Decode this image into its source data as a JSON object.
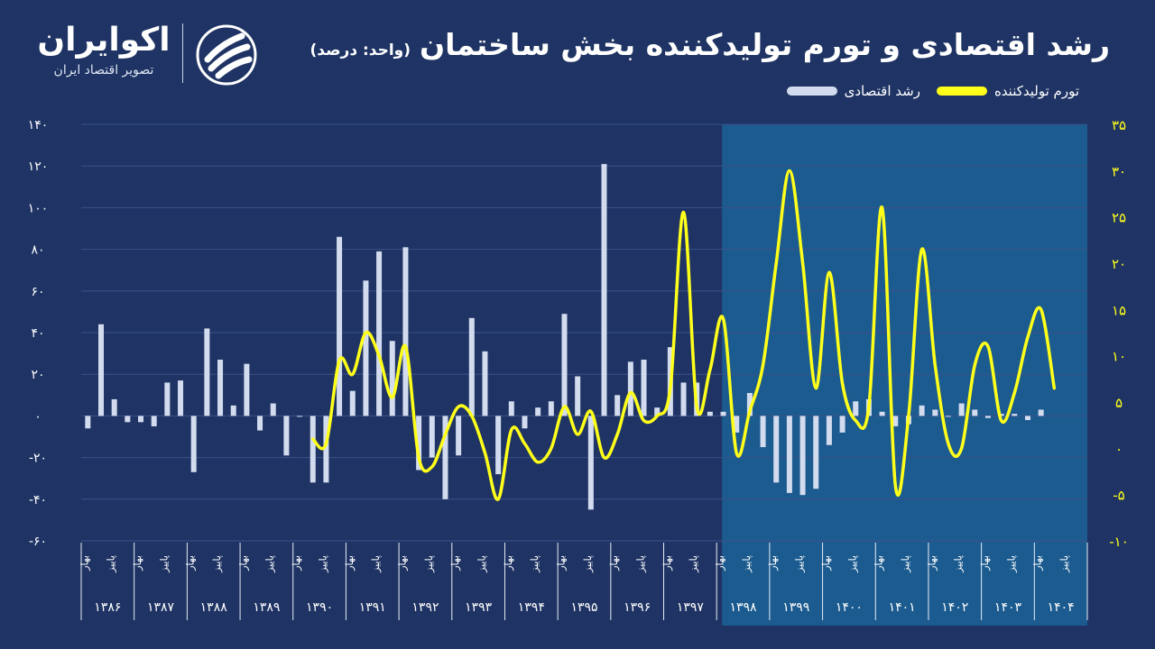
{
  "header": {
    "title": "رشد اقتصادی و تورم تولیدکننده بخش ساختمان",
    "unit": "(واحد: درصد)",
    "logo": {
      "name": "اکوایران",
      "tagline": "تصویر اقتصاد ایران"
    }
  },
  "colors": {
    "background": "#1f3464",
    "highlight": "#1c5b8f",
    "bar": "#d3dcef",
    "line": "#ffff1a"
  },
  "chart_data": {
    "type": "bar",
    "legend": [
      {
        "label": "تورم تولیدکننده",
        "color": "#ffff1a",
        "kind": "line"
      },
      {
        "label": "رشد اقتصادی",
        "color": "#d3dcef",
        "kind": "bar"
      }
    ],
    "y_left": {
      "ticks": [
        "۱۴۰",
        "۱۲۰",
        "۱۰۰",
        "۸۰",
        "۶۰",
        "۴۰",
        "۲۰",
        "۰",
        "-۲۰",
        "-۴۰",
        "-۶۰"
      ],
      "min": -60,
      "max": 140
    },
    "y_right": {
      "ticks": [
        "۳۵",
        "۳۰",
        "۲۵",
        "۲۰",
        "۱۵",
        "۱۰",
        "۵",
        "۰",
        "-۵",
        "-۱۰"
      ],
      "min": -10,
      "max": 35
    },
    "x": {
      "season_labels": [
        "بهار",
        "پاییز"
      ],
      "years": [
        "۱۳۸۶",
        "۱۳۸۷",
        "۱۳۸۸",
        "۱۳۸۹",
        "۱۳۹۰",
        "۱۳۹۱",
        "۱۳۹۲",
        "۱۳۹۳",
        "۱۳۹۴",
        "۱۳۹۵",
        "۱۳۹۶",
        "۱۳۹۷",
        "۱۳۹۸",
        "۱۳۹۹",
        "۱۴۰۰",
        "۱۴۰۱",
        "۱۴۰۲",
        "۱۴۰۳",
        "۱۴۰۴"
      ],
      "quarters_per_year": 4,
      "highlight_from_year_index": 12
    },
    "series": [
      {
        "name": "رشد اقتصادی",
        "type": "bar",
        "values": [
          -6,
          44,
          8,
          -3,
          -3,
          -5,
          16,
          17,
          -27,
          42,
          27,
          5,
          25,
          -7,
          6,
          -19,
          0,
          -32,
          -32,
          86,
          12,
          65,
          79,
          36,
          81,
          -26,
          -20,
          -40,
          -19,
          47,
          31,
          -28,
          7,
          -6,
          4,
          7,
          49,
          19,
          -45,
          121,
          10,
          26,
          27,
          4,
          33,
          16,
          16,
          2,
          2,
          -8,
          11,
          -15,
          -32,
          -37,
          -38,
          -35,
          -14,
          -8,
          7,
          8,
          2,
          -5,
          -4,
          5,
          3,
          0,
          6,
          3,
          -1,
          1,
          1,
          -2,
          3
        ]
      },
      {
        "name": "تورم تولیدکننده",
        "type": "line",
        "start_index": 17,
        "values": [
          1,
          0.5,
          9.5,
          8,
          12.5,
          10,
          5.5,
          11,
          -1,
          -2,
          1.5,
          4.5,
          3.5,
          -0.5,
          -5.5,
          2,
          0.5,
          -1.5,
          0,
          4.5,
          1.5,
          4,
          -1,
          1.5,
          6,
          3,
          3.5,
          6.5,
          25.5,
          4.5,
          8.5,
          14,
          -0.5,
          4,
          9,
          20,
          30,
          20,
          6.5,
          19,
          7,
          3,
          4.5,
          26,
          -4,
          3.5,
          21.5,
          9,
          0.5,
          0,
          9,
          11,
          3,
          6,
          12,
          15,
          6.5
        ]
      }
    ]
  }
}
